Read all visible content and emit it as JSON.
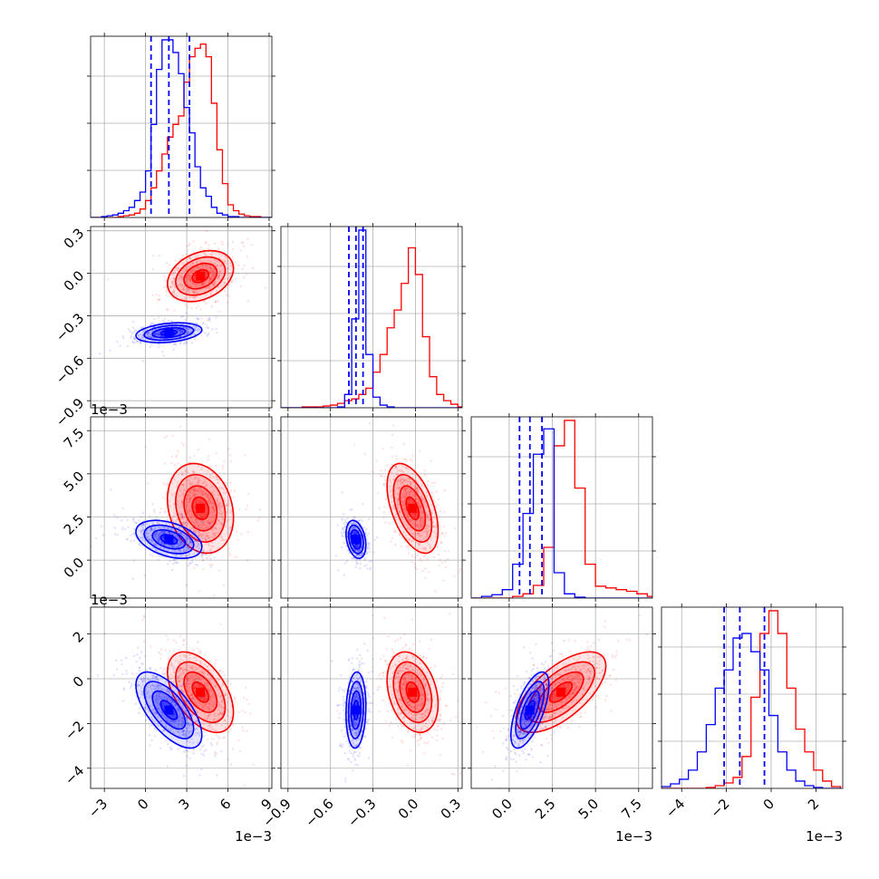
{
  "colors": {
    "red": "#ff0000",
    "blue": "#0000ff",
    "grid": "#b0b0b0"
  },
  "chart_data": {
    "type": "corner",
    "grid": true,
    "params": [
      {
        "range": [
          -4.0,
          9.2
        ],
        "ticks": [
          -3,
          0,
          3,
          6,
          9
        ],
        "tick_labels": [
          "−3",
          "0",
          "3",
          "6",
          "9"
        ],
        "offset": "1e−3"
      },
      {
        "range": [
          -0.95,
          0.33
        ],
        "ticks": [
          -0.9,
          -0.6,
          -0.3,
          0.0,
          0.3
        ],
        "tick_labels": [
          "−0.9",
          "−0.6",
          "−0.3",
          "0.0",
          "0.3"
        ],
        "offset": ""
      },
      {
        "range": [
          -2.2,
          8.3
        ],
        "ticks": [
          0.0,
          2.5,
          5.0,
          7.5
        ],
        "tick_labels": [
          "0.0",
          "2.5",
          "5.0",
          "7.5"
        ],
        "offset": "1e−3"
      },
      {
        "range": [
          -4.9,
          3.2
        ],
        "ticks": [
          -4,
          -2,
          0,
          2
        ],
        "tick_labels": [
          "−4",
          "−2",
          "0",
          "2"
        ],
        "offset": "1e−3"
      }
    ],
    "series": [
      {
        "name": "",
        "color": "#ff0000",
        "mean": [
          4.0,
          -0.02,
          3.0,
          -0.6
        ],
        "sd": [
          1.2,
          0.09,
          1.3,
          0.9
        ],
        "corr": [
          [
            1,
            0.3,
            -0.2,
            -0.5
          ],
          [
            0.3,
            1,
            -0.5,
            -0.3
          ],
          [
            -0.2,
            -0.5,
            1,
            0.65
          ],
          [
            -0.5,
            -0.3,
            0.65,
            1
          ]
        ]
      },
      {
        "name": "",
        "color": "#0000ff",
        "mean": [
          1.7,
          -0.42,
          1.2,
          -1.4
        ],
        "sd": [
          1.2,
          0.035,
          0.55,
          0.85
        ],
        "corr": [
          [
            1,
            0.3,
            -0.4,
            -0.65
          ],
          [
            0.3,
            1,
            -0.3,
            0.1
          ],
          [
            -0.4,
            -0.3,
            1,
            0.65
          ],
          [
            -0.65,
            0.1,
            0.65,
            1
          ]
        ]
      }
    ],
    "quantiles": [
      {
        "param": 0,
        "values": [
          0.4,
          1.7,
          3.2
        ]
      },
      {
        "param": 1,
        "values": [
          -0.47,
          -0.42,
          -0.37
        ]
      },
      {
        "param": 2,
        "values": [
          0.6,
          1.2,
          1.9
        ]
      },
      {
        "param": 3,
        "values": [
          -2.1,
          -1.4,
          -0.3
        ]
      }
    ],
    "histograms": [
      {
        "param": 0,
        "series": 0,
        "bins": [
          -4.0,
          -3.6,
          -3.2,
          -2.8,
          -2.4,
          -2.0,
          -1.6,
          -1.2,
          -0.8,
          -0.4,
          0.0,
          0.4,
          0.8,
          1.2,
          1.6,
          2.0,
          2.4,
          2.8,
          3.2,
          3.6,
          4.0,
          4.4,
          4.8,
          5.2,
          5.6,
          6.0,
          6.4,
          6.8,
          7.2,
          7.6,
          8.0,
          8.4,
          8.8,
          9.2
        ],
        "counts": [
          0,
          0,
          0,
          0,
          0,
          1,
          2,
          3,
          5,
          10,
          20,
          35,
          55,
          75,
          95,
          110,
          120,
          160,
          190,
          200,
          205,
          190,
          135,
          80,
          40,
          15,
          8,
          4,
          2,
          1,
          1,
          0,
          0
        ]
      },
      {
        "param": 0,
        "series": 1,
        "bins": [
          -4.0,
          -3.6,
          -3.2,
          -2.8,
          -2.4,
          -2.0,
          -1.6,
          -1.2,
          -0.8,
          -0.4,
          0.0,
          0.4,
          0.8,
          1.2,
          1.6,
          2.0,
          2.4,
          2.8,
          3.2,
          3.6,
          4.0,
          4.4,
          4.8,
          5.2,
          5.6,
          6.0,
          6.4,
          6.8,
          7.2,
          7.6,
          8.0,
          8.4,
          8.8,
          9.2
        ],
        "counts": [
          0,
          0,
          1,
          2,
          3,
          5,
          8,
          12,
          20,
          30,
          55,
          110,
          175,
          210,
          210,
          195,
          170,
          130,
          100,
          60,
          35,
          25,
          12,
          5,
          3,
          1,
          1,
          0,
          0,
          0,
          0,
          0,
          0
        ]
      },
      {
        "param": 1,
        "series": 0,
        "bins": [
          -0.95,
          -0.9,
          -0.85,
          -0.8,
          -0.75,
          -0.7,
          -0.65,
          -0.6,
          -0.55,
          -0.5,
          -0.45,
          -0.4,
          -0.35,
          -0.3,
          -0.25,
          -0.2,
          -0.15,
          -0.1,
          -0.05,
          0.0,
          0.05,
          0.1,
          0.15,
          0.2,
          0.25,
          0.3,
          0.33
        ],
        "counts": [
          0,
          0,
          0,
          1,
          1,
          1,
          2,
          3,
          5,
          8,
          10,
          15,
          22,
          40,
          60,
          90,
          110,
          140,
          180,
          150,
          80,
          35,
          15,
          8,
          4,
          1
        ]
      },
      {
        "param": 1,
        "series": 1,
        "bins": [
          -0.95,
          -0.9,
          -0.85,
          -0.8,
          -0.75,
          -0.7,
          -0.65,
          -0.6,
          -0.55,
          -0.5,
          -0.45,
          -0.4,
          -0.35,
          -0.3,
          -0.25,
          -0.2,
          -0.15,
          -0.1,
          -0.05,
          0.0,
          0.05,
          0.1,
          0.15,
          0.2,
          0.25,
          0.3,
          0.33
        ],
        "counts": [
          0,
          0,
          0,
          0,
          0,
          0,
          0,
          0,
          1,
          15,
          100,
          200,
          60,
          12,
          3,
          1,
          0,
          0,
          0,
          0,
          0,
          0,
          0,
          0,
          0,
          0
        ]
      },
      {
        "param": 2,
        "series": 0,
        "bins": [
          -2.2,
          -1.6,
          -1.0,
          -0.4,
          0.2,
          0.8,
          1.4,
          2.0,
          2.6,
          3.2,
          3.8,
          4.4,
          5.0,
          5.6,
          6.2,
          6.8,
          7.4,
          8.0,
          8.3
        ],
        "counts": [
          0,
          0,
          0,
          0,
          2,
          5,
          15,
          60,
          180,
          210,
          130,
          40,
          14,
          12,
          10,
          8,
          5,
          2
        ]
      },
      {
        "param": 2,
        "series": 1,
        "bins": [
          -2.2,
          -1.6,
          -1.0,
          -0.4,
          0.2,
          0.8,
          1.4,
          2.0,
          2.6,
          3.2,
          3.8,
          4.4,
          5.0,
          5.6,
          6.2,
          6.8,
          7.4,
          8.0,
          8.3
        ],
        "counts": [
          0,
          2,
          4,
          10,
          40,
          100,
          170,
          200,
          30,
          5,
          1,
          0,
          0,
          0,
          0,
          0,
          0,
          0
        ]
      },
      {
        "param": 3,
        "series": 0,
        "bins": [
          -4.9,
          -4.5,
          -4.1,
          -3.7,
          -3.3,
          -2.9,
          -2.5,
          -2.1,
          -1.7,
          -1.3,
          -0.9,
          -0.5,
          -0.1,
          0.3,
          0.7,
          1.1,
          1.5,
          1.9,
          2.3,
          2.7,
          3.1
        ],
        "counts": [
          0,
          0,
          0,
          0,
          0,
          1,
          3,
          6,
          12,
          35,
          100,
          170,
          195,
          170,
          110,
          65,
          40,
          20,
          8,
          2
        ]
      },
      {
        "param": 3,
        "series": 1,
        "bins": [
          -4.9,
          -4.5,
          -4.1,
          -3.7,
          -3.3,
          -2.9,
          -2.5,
          -2.1,
          -1.7,
          -1.3,
          -0.9,
          -0.5,
          -0.1,
          0.3,
          0.7,
          1.1,
          1.5,
          1.9,
          2.3,
          2.7,
          3.1
        ],
        "counts": [
          2,
          5,
          10,
          20,
          40,
          70,
          110,
          130,
          165,
          170,
          150,
          130,
          80,
          40,
          20,
          8,
          3,
          1,
          0,
          0
        ]
      }
    ]
  }
}
